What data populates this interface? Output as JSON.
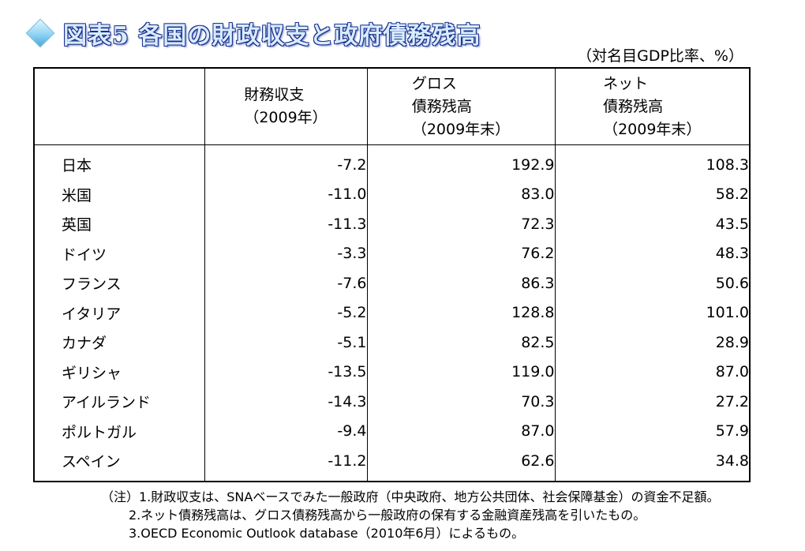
{
  "title": "図表5 各国の財政収支と政府債務残高",
  "unit_note": "（対名目GDP比率、%）",
  "headers": {
    "col2": [
      "財務収支",
      "（2009年）"
    ],
    "col3": [
      "グロス",
      "債務残高",
      "（2009年末）"
    ],
    "col4": [
      "ネット",
      "債務残高",
      "（2009年末）"
    ]
  },
  "rows": [
    {
      "country": "日本",
      "balance": "-7.2",
      "gross": "192.9",
      "net": "108.3"
    },
    {
      "country": "米国",
      "balance": "-11.0",
      "gross": "83.0",
      "net": "58.2"
    },
    {
      "country": "英国",
      "balance": "-11.3",
      "gross": "72.3",
      "net": "43.5"
    },
    {
      "country": "ドイツ",
      "balance": "-3.3",
      "gross": "76.2",
      "net": "48.3"
    },
    {
      "country": "フランス",
      "balance": "-7.6",
      "gross": "86.3",
      "net": "50.6"
    },
    {
      "country": "イタリア",
      "balance": "-5.2",
      "gross": "128.8",
      "net": "101.0"
    },
    {
      "country": "カナダ",
      "balance": "-5.1",
      "gross": "82.5",
      "net": "28.9"
    },
    {
      "country": "ギリシャ",
      "balance": "-13.5",
      "gross": "119.0",
      "net": "87.0"
    },
    {
      "country": "アイルランド",
      "balance": "-14.3",
      "gross": "70.3",
      "net": "27.2"
    },
    {
      "country": "ポルトガル",
      "balance": "-9.4",
      "gross": "87.0",
      "net": "57.9"
    },
    {
      "country": "スペイン",
      "balance": "-11.2",
      "gross": "62.6",
      "net": "34.8"
    }
  ],
  "notes": [
    "（注）1.財政収支は、SNAベースでみた一般政府（中央政府、地方公共団体、社会保障基金）の資金不足額。",
    "2.ネット債務残高は、グロス債務残高から一般政府の保有する金融資産残高を引いたもの。",
    "3.OECD Economic Outlook database（2010年6月）によるもの。"
  ],
  "icons": {
    "title_bullet": "diamond-icon"
  },
  "colors": {
    "title_fill": "#d8ecff",
    "title_outline": "#1a2f8a",
    "bullet": "#8fd3f4"
  }
}
